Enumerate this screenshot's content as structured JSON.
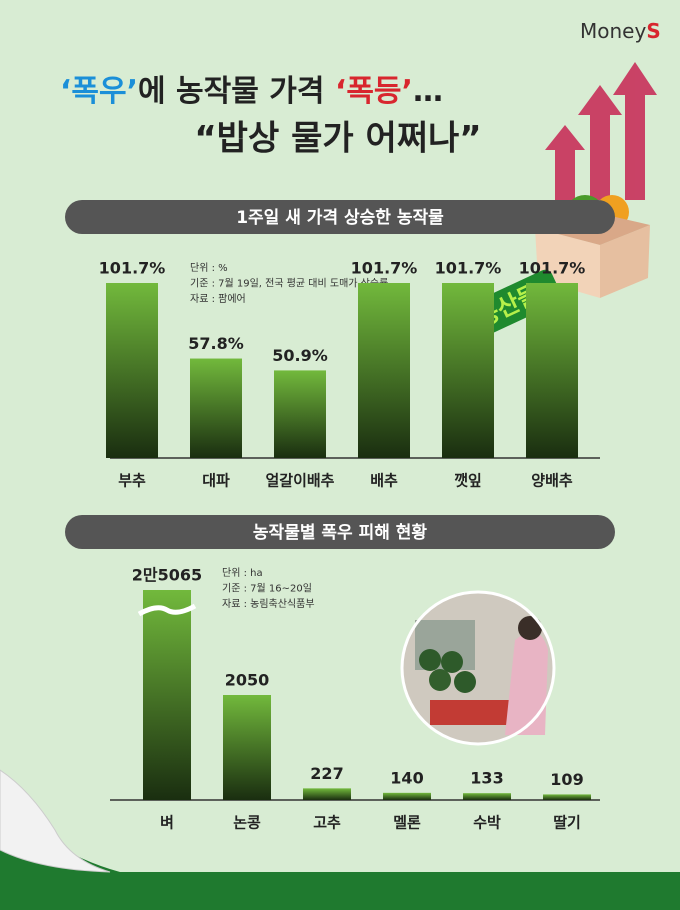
{
  "header": {
    "brand": [
      "Money",
      "S"
    ],
    "headline": [
      {
        "text": "‘폭우’",
        "color": "#1b8fd8"
      },
      {
        "text": "에 농작물 가격 ",
        "color": "#222222"
      },
      {
        "text": "‘폭등’",
        "color": "#d8262e"
      },
      {
        "text": "…",
        "color": "#222222"
      }
    ],
    "subheadline": "“밥상 물가 어쩌나”",
    "badge": "농산물"
  },
  "chart_data": [
    {
      "type": "bar",
      "title": "1주일 새 가격 상승한 농작물",
      "notes": [
        "단위 : %",
        "기준 : 7월 19일, 전국 평균 대비 도매가 상승률",
        "자료 : 팜에어"
      ],
      "categories": [
        "부추",
        "대파",
        "얼갈이배추",
        "배추",
        "깻잎",
        "양배추"
      ],
      "values": [
        101.7,
        57.8,
        50.9,
        101.7,
        101.7,
        101.7
      ],
      "value_labels": [
        "101.7%",
        "57.8%",
        "50.9%",
        "101.7%",
        "101.7%",
        "101.7%"
      ],
      "color": "#72b93c",
      "axis_break": false
    },
    {
      "type": "bar",
      "title": "농작물별 폭우 피해 현황",
      "notes": [
        "단위 : ha",
        "기준 : 7월 16~20일",
        "자료 : 농림축산식품부"
      ],
      "categories": [
        "벼",
        "논콩",
        "고추",
        "멜론",
        "수박",
        "딸기"
      ],
      "values": [
        25065,
        2050,
        227,
        140,
        133,
        109
      ],
      "value_labels": [
        "2만5065",
        "2050",
        "227",
        "140",
        "133",
        "109"
      ],
      "color": "#72b93c",
      "axis_break": true
    }
  ]
}
